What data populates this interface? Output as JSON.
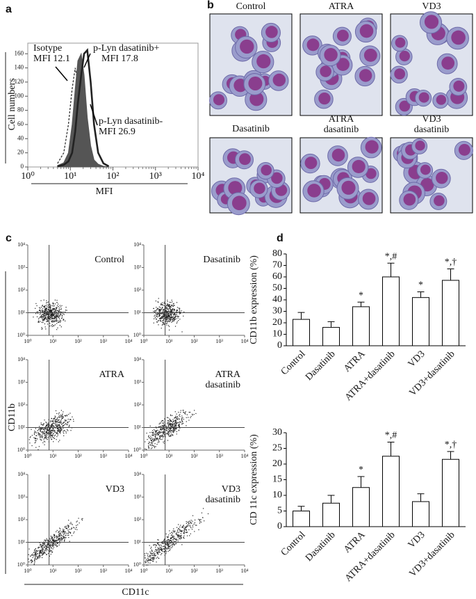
{
  "panels": [
    "a",
    "b",
    "c",
    "d"
  ],
  "images": [
    {
      "label": [
        "Control"
      ]
    },
    {
      "label": [
        "ATRA"
      ]
    },
    {
      "label": [
        "VD3"
      ]
    },
    {
      "label": [
        "Dasatinib"
      ]
    },
    {
      "label": [
        "ATRA",
        "dasatinib"
      ]
    },
    {
      "label": [
        "VD3",
        "dasatinib"
      ]
    }
  ],
  "chart_data": [
    {
      "type": "histogram-line",
      "xlabel": "MFI",
      "ylabel": "Cell numbers",
      "log_x": true,
      "xlim": [
        1,
        10000
      ],
      "xticks": [
        {
          "value": 1,
          "label": "10⁰"
        },
        {
          "value": 10,
          "label": "10¹"
        },
        {
          "value": 100,
          "label": "10²"
        },
        {
          "value": 1000,
          "label": "10³"
        },
        {
          "value": 10000,
          "label": "10⁴"
        }
      ],
      "ylim": [
        0,
        175
      ],
      "yticks": [
        0,
        20,
        40,
        60,
        80,
        100,
        120,
        140,
        160
      ],
      "x": [
        5,
        7,
        9,
        11,
        13,
        15,
        18,
        21,
        25,
        30,
        36,
        45,
        60,
        80
      ],
      "series": [
        {
          "name": "Isotype",
          "color": "#333333",
          "style": "dashed",
          "values": [
            5,
            20,
            60,
            110,
            140,
            120,
            70,
            30,
            10,
            4,
            2,
            1,
            0,
            0
          ]
        },
        {
          "name": "p-Lyn dasatinib+",
          "color": "#555555",
          "style": "filled",
          "values": [
            2,
            6,
            20,
            60,
            110,
            150,
            160,
            130,
            70,
            30,
            10,
            4,
            1,
            0
          ]
        },
        {
          "name": "p-Lyn dasatinib-",
          "color": "#222222",
          "style": "thick",
          "values": [
            1,
            3,
            8,
            20,
            50,
            90,
            130,
            160,
            165,
            120,
            60,
            20,
            5,
            1
          ]
        }
      ],
      "annotations": [
        [
          "Isotype",
          "MFI 12.1"
        ],
        [
          "p-Lyn dasatinib+",
          "MFI 17.8"
        ],
        [
          "p-Lyn dasatinib-",
          "MFI 26.9"
        ]
      ]
    },
    {
      "type": "density-grid",
      "xlabel": "CD11c",
      "ylabel": "CD11b",
      "log_x": true,
      "log_y": true,
      "xlim": [
        1,
        10000
      ],
      "ylim": [
        1,
        10000
      ],
      "xticks": [
        {
          "value": 1,
          "label": "10⁰"
        },
        {
          "value": 10,
          "label": "10¹"
        },
        {
          "value": 100,
          "label": "10²"
        },
        {
          "value": 1000,
          "label": "10³"
        },
        {
          "value": 10000,
          "label": "10⁴"
        }
      ],
      "yticks": [
        {
          "value": 1,
          "label": "10⁰"
        },
        {
          "value": 10,
          "label": "10¹"
        },
        {
          "value": 100,
          "label": "10²"
        },
        {
          "value": 1000,
          "label": "10³"
        },
        {
          "value": 10000,
          "label": "10⁴"
        }
      ],
      "gate_x": 7,
      "gate_y": 10,
      "plots": [
        [
          "Control"
        ],
        [
          "Dasatinib"
        ],
        [
          "ATRA"
        ],
        [
          "ATRA",
          "dasatinib"
        ],
        [
          "VD3"
        ],
        [
          "VD3",
          "dasatinib"
        ]
      ]
    },
    {
      "type": "bar",
      "ylabel": "CD11b expression (%)",
      "categories": [
        "Control",
        "Dasatinib",
        "ATRA",
        "ATRA+dasatinib",
        "VD3",
        "VD3+dasatinib"
      ],
      "values": [
        23,
        16,
        34,
        60,
        42,
        57
      ],
      "errors": [
        6,
        5,
        4,
        12,
        5,
        10
      ],
      "annotations": [
        null,
        null,
        "*",
        "*,#",
        "*",
        "*,†"
      ],
      "color": "#ffffff",
      "ylim": [
        0,
        80
      ],
      "yticks": [
        0,
        10,
        20,
        30,
        40,
        50,
        60,
        70,
        80
      ]
    },
    {
      "type": "bar",
      "ylabel": "CD 11c expression (%)",
      "categories": [
        "Control",
        "Dasatinib",
        "ATRA",
        "ATRA+dasatinib",
        "VD3",
        "VD3+dasatinib"
      ],
      "values": [
        5,
        7.5,
        12.5,
        22.5,
        8,
        21.5
      ],
      "errors": [
        1.5,
        2.5,
        3.5,
        4.5,
        2.5,
        2.5
      ],
      "annotations": [
        null,
        null,
        "*",
        "*,#",
        null,
        "*,†"
      ],
      "color": "#ffffff",
      "ylim": [
        0,
        30
      ],
      "yticks": [
        0,
        5,
        10,
        15,
        20,
        25,
        30
      ]
    }
  ]
}
